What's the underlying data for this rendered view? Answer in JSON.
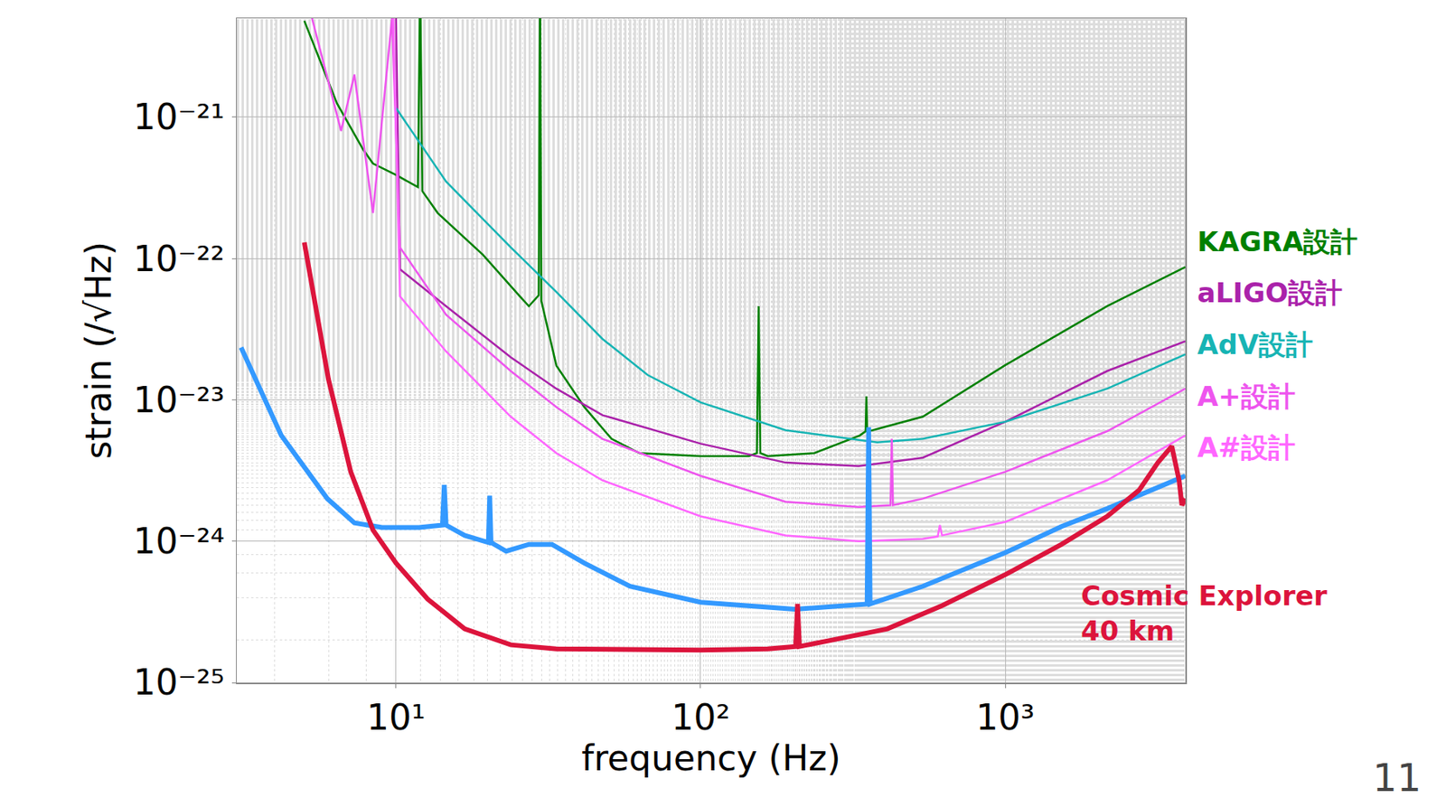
{
  "chart_data": {
    "type": "line",
    "x_label": "frequency (Hz)",
    "y_label": "strain (/√Hz)",
    "log": true,
    "grid": true,
    "legend": "right",
    "xlim": [
      3,
      3900
    ],
    "ylim": [
      1e-25,
      5e-21
    ],
    "xticks": [
      {
        "value": 10,
        "label": "10¹"
      },
      {
        "value": 100,
        "label": "10²"
      },
      {
        "value": 1000,
        "label": "10³"
      }
    ],
    "yticks": [
      {
        "value": 1e-25,
        "label": "10⁻²⁵"
      },
      {
        "value": 1e-24,
        "label": "10⁻²⁴"
      },
      {
        "value": 1e-23,
        "label": "10⁻²³"
      },
      {
        "value": 1e-22,
        "label": "10⁻²²"
      },
      {
        "value": 1e-21,
        "label": "10⁻²¹"
      }
    ],
    "annotations": [
      "11"
    ],
    "series": [
      {
        "name": "KAGRA設計",
        "color": "#008000",
        "line_style": "solid",
        "x": [
          5,
          6.4,
          7.8,
          8.4,
          10,
          11.8,
          12,
          12.2,
          13.7,
          19.3,
          25.5,
          27.3,
          29.4,
          29.7,
          30.0,
          33.6,
          41.5,
          51,
          63,
          100,
          144,
          153,
          155,
          157,
          166,
          236,
          333,
          348,
          350,
          352,
          367,
          536,
          1000,
          2160,
          3900
        ],
        "values": [
          4.8e-21,
          1.25e-21,
          5.9e-22,
          4.7e-22,
          3.9e-22,
          3.2e-22,
          1e-20,
          3e-22,
          2.1e-22,
          1.06e-22,
          5.4e-23,
          4.6e-23,
          5.5e-23,
          1e-20,
          5e-23,
          1.75e-23,
          8.9e-24,
          5.3e-24,
          4.2e-24,
          4e-24,
          4e-24,
          4.2e-24,
          4.6e-23,
          4.2e-24,
          4e-24,
          4.2e-24,
          5.6e-24,
          6e-24,
          1.06e-23,
          6e-24,
          6.1e-24,
          7.6e-24,
          1.76e-23,
          4.6e-23,
          8.7e-23
        ]
      },
      {
        "name": "aLIGO設計",
        "color": "#aa22aa",
        "line_style": "solid",
        "x": [
          10,
          10.3,
          14.6,
          23.8,
          33.6,
          47.6,
          100,
          190,
          330,
          536,
          1000,
          2160,
          3900
        ],
        "values": [
          5e-21,
          8.4e-23,
          4.6e-23,
          2e-23,
          1.2e-23,
          7.8e-24,
          4.9e-24,
          3.6e-24,
          3.4e-24,
          3.9e-24,
          7e-24,
          1.6e-23,
          2.6e-23
        ]
      },
      {
        "name": "AdV設計",
        "color": "#17b4b4",
        "line_style": "solid",
        "x": [
          10,
          14.6,
          23.8,
          33.6,
          47.6,
          67,
          100,
          190,
          380,
          536,
          1000,
          2160,
          3900
        ],
        "values": [
          1.16e-21,
          3.5e-22,
          1.2e-22,
          5.8e-23,
          2.7e-23,
          1.5e-23,
          9.6e-24,
          6.1e-24,
          5e-24,
          5.3e-24,
          7e-24,
          1.2e-23,
          2.1e-23
        ]
      },
      {
        "name": "A+設計",
        "color": "#ee55ee",
        "line_style": "solid",
        "x": [
          5.3,
          6.6,
          7.3,
          8.4,
          9.7,
          10.3,
          14.6,
          23.8,
          33.6,
          47.6,
          100,
          190,
          330,
          420,
          424,
          428,
          536,
          1000,
          2160,
          3900
        ],
        "values": [
          5e-21,
          8e-22,
          2e-21,
          2.1e-22,
          5e-21,
          1.2e-22,
          4e-23,
          1.6e-23,
          8.9e-24,
          5.3e-24,
          2.9e-24,
          1.9e-24,
          1.75e-24,
          1.8e-24,
          5.3e-24,
          1.8e-24,
          2e-24,
          3.1e-24,
          6e-24,
          1.2e-23
        ]
      },
      {
        "name": "A#設計",
        "color": "#ff66ff",
        "line_style": "solid",
        "x": [
          9.8,
          10.3,
          14.6,
          23.8,
          33.6,
          47.6,
          100,
          190,
          330,
          536,
          600,
          610,
          620,
          1000,
          2160,
          3900
        ],
        "values": [
          5e-21,
          5.4e-23,
          2.2e-23,
          7.6e-24,
          4.2e-24,
          2.7e-24,
          1.5e-24,
          1.1e-24,
          1e-24,
          1.04e-24,
          1.08e-24,
          1.3e-24,
          1.1e-24,
          1.37e-24,
          2.7e-24,
          5.6e-24
        ]
      },
      {
        "color": "#3399ff",
        "line_style": "thick",
        "x": [
          3.1,
          4.2,
          5.95,
          7.3,
          9,
          11.9,
          14.2,
          14.4,
          14.6,
          16.8,
          20.1,
          20.3,
          20.5,
          23,
          27.3,
          32.5,
          41.5,
          58.6,
          100,
          204,
          352,
          356,
          360,
          536,
          1000,
          1530,
          2160,
          3900
        ],
        "values": [
          2.35e-23,
          5.6e-24,
          2e-24,
          1.35e-24,
          1.25e-24,
          1.25e-24,
          1.3e-24,
          2.5e-24,
          1.3e-24,
          1.1e-24,
          9.8e-25,
          2.1e-24,
          9.8e-25,
          8.5e-25,
          9.5e-25,
          9.5e-25,
          7e-25,
          4.8e-25,
          3.7e-25,
          3.3e-25,
          3.6e-25,
          6.4e-24,
          3.6e-25,
          4.8e-25,
          8.3e-25,
          1.27e-24,
          1.7e-24,
          2.9e-24
        ]
      },
      {
        "name": "Cosmic Explorer 40 km",
        "color": "#dc143c",
        "line_style": "thick",
        "x": [
          5,
          6,
          7.1,
          8.4,
          10,
          12.7,
          16.8,
          23.8,
          33.6,
          67,
          100,
          166,
          205,
          208,
          211,
          270,
          410,
          620,
          1000,
          1530,
          2160,
          2750,
          3170,
          3520,
          3720,
          3800,
          3900
        ],
        "values": [
          1.3e-22,
          1.4e-23,
          3.1e-24,
          1.2e-24,
          7e-25,
          3.9e-25,
          2.4e-25,
          1.85e-25,
          1.73e-25,
          1.7e-25,
          1.7e-25,
          1.73e-25,
          1.8e-25,
          3.6e-25,
          1.8e-25,
          2e-25,
          2.4e-25,
          3.5e-25,
          5.8e-25,
          9.5e-25,
          1.5e-24,
          2.3e-24,
          3.6e-24,
          4.7e-24,
          2.7e-24,
          1.8e-24,
          2e-24
        ]
      }
    ]
  }
}
